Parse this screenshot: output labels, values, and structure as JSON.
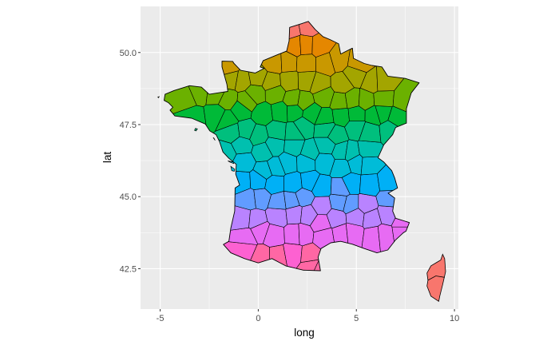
{
  "chart_data": {
    "type": "map",
    "region": "France departments",
    "xlabel": "long",
    "ylabel": "lat",
    "xlim": [
      -6,
      10.2
    ],
    "ylim": [
      41.1,
      51.6
    ],
    "x_ticks": [
      -5,
      0,
      5,
      10
    ],
    "x_tick_labels": [
      "-5",
      "0",
      "5",
      "10"
    ],
    "y_ticks": [
      42.5,
      45.0,
      47.5,
      50.0
    ],
    "y_tick_labels": [
      "42.5",
      "45.0",
      "47.5",
      "50.0"
    ],
    "grid": true,
    "legend": "none",
    "background_color": "#EBEBEB",
    "grid_color": "#FFFFFF",
    "outline_color": "#000000",
    "fill_palette_north_to_south": [
      "#F8766D",
      "#E58700",
      "#C99800",
      "#A3A500",
      "#6BB100",
      "#00BA38",
      "#00BF7D",
      "#00C0AF",
      "#00BCD8",
      "#00B0F6",
      "#619CFF",
      "#B983FF",
      "#E76BF3",
      "#FD61D1",
      "#FF67A4"
    ]
  }
}
